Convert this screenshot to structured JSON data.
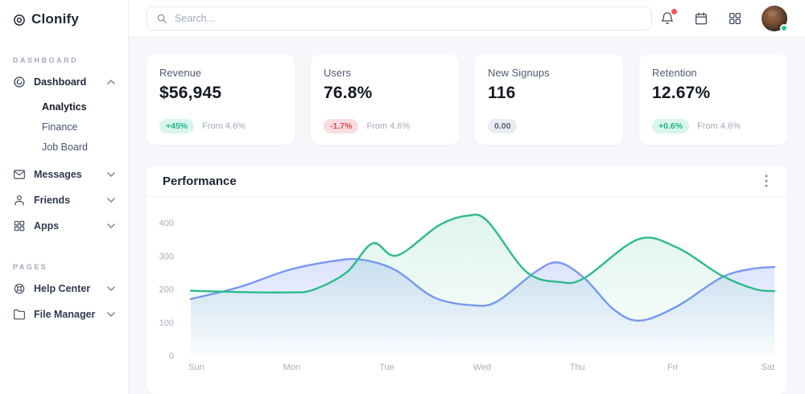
{
  "brand": {
    "name": "Clonify"
  },
  "topbar": {
    "search_placeholder": "Search...",
    "has_notification": true,
    "avatar_status": "online"
  },
  "sidebar": {
    "sections": [
      {
        "label": "DASHBOARD",
        "items": [
          {
            "label": "Dashboard",
            "expanded": true,
            "children": [
              "Analytics",
              "Finance",
              "Job Board"
            ],
            "active_child": "Analytics"
          },
          {
            "label": "Messages"
          },
          {
            "label": "Friends"
          },
          {
            "label": "Apps"
          }
        ]
      },
      {
        "label": "PAGES",
        "items": [
          {
            "label": "Help Center"
          },
          {
            "label": "File Manager"
          }
        ]
      }
    ]
  },
  "stats": {
    "cards": [
      {
        "title": "Revenue",
        "value": "$56,945",
        "badge": "+45%",
        "badge_type": "positive",
        "note": "From 4.6%"
      },
      {
        "title": "Users",
        "value": "76.8%",
        "badge": "-1.7%",
        "badge_type": "negative",
        "note": "From 4.6%"
      },
      {
        "title": "New Signups",
        "value": "116",
        "badge": "0.00",
        "badge_type": "neutral",
        "note": ""
      },
      {
        "title": "Retention",
        "value": "12.67%",
        "badge": "+0.6%",
        "badge_type": "positive",
        "note": "From 4.6%"
      }
    ]
  },
  "chart_data": {
    "type": "area",
    "title": "Performance",
    "x_tick_labels": [
      "Sun",
      "Mon",
      "Tue",
      "Wed",
      "Thu",
      "Fri",
      "Sat"
    ],
    "y_ticks": [
      0,
      100,
      200,
      300,
      400
    ],
    "ylim": [
      0,
      430
    ],
    "grid": false,
    "legend": "none",
    "series": [
      {
        "name": "series-blue",
        "color": "#7b96f3",
        "fill_opacity": [
          0.38,
          0.02
        ],
        "points": [
          [
            0,
            170
          ],
          [
            0.5,
            206
          ],
          [
            1,
            257
          ],
          [
            1.45,
            284
          ],
          [
            1.75,
            289
          ],
          [
            2.1,
            258
          ],
          [
            2.5,
            175
          ],
          [
            2.9,
            151
          ],
          [
            3.15,
            163
          ],
          [
            3.55,
            253
          ],
          [
            3.78,
            280
          ],
          [
            4.05,
            232
          ],
          [
            4.35,
            138
          ],
          [
            4.62,
            105
          ],
          [
            5,
            148
          ],
          [
            5.45,
            234
          ],
          [
            5.75,
            260
          ],
          [
            6,
            267
          ]
        ]
      },
      {
        "name": "series-green",
        "color": "#2eba8b",
        "fill_opacity": [
          0.15,
          0.02
        ],
        "points": [
          [
            0,
            195
          ],
          [
            0.5,
            191
          ],
          [
            1,
            190
          ],
          [
            1.25,
            197
          ],
          [
            1.6,
            250
          ],
          [
            1.87,
            338
          ],
          [
            2.12,
            301
          ],
          [
            2.55,
            392
          ],
          [
            2.84,
            421
          ],
          [
            3.05,
            405
          ],
          [
            3.45,
            252
          ],
          [
            3.8,
            221
          ],
          [
            4.05,
            234
          ],
          [
            4.6,
            350
          ],
          [
            5,
            325
          ],
          [
            5.45,
            242
          ],
          [
            5.8,
            200
          ],
          [
            6,
            194
          ]
        ]
      }
    ]
  },
  "colors": {
    "series_blue": "#7b96f3",
    "series_green": "#2eba8b",
    "badge_positive_bg": "#d9f6ec",
    "badge_positive_text": "#1cb48e",
    "badge_negative_bg": "#fadde0",
    "badge_negative_text": "#e5484d",
    "badge_neutral_bg": "#e9ecf1",
    "notification_dot": "#f2545b",
    "online_dot": "#2fbf8f",
    "sidebar_bg": "#ffffff",
    "main_bg": "#f6f7fa"
  }
}
